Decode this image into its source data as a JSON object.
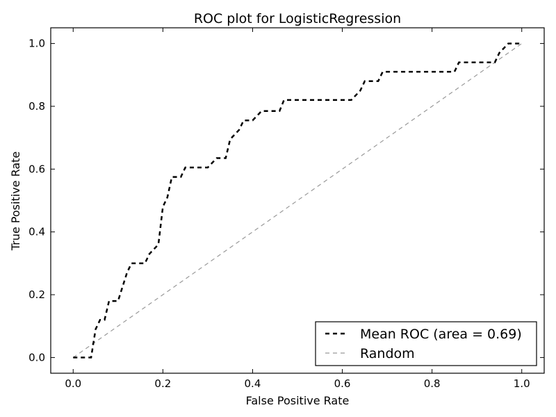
{
  "chart_data": {
    "type": "line",
    "title": "ROC plot for LogisticRegression",
    "xlabel": "False Positive Rate",
    "ylabel": "True Positive Rate",
    "xlim": [
      -0.05,
      1.05
    ],
    "ylim": [
      -0.05,
      1.05
    ],
    "xticks": [
      "0.0",
      "0.2",
      "0.4",
      "0.6",
      "0.8",
      "1.0"
    ],
    "yticks": [
      "0.0",
      "0.2",
      "0.4",
      "0.6",
      "0.8",
      "1.0"
    ],
    "grid": false,
    "legend": {
      "position": "lower-right",
      "entries": [
        "Mean ROC (area = 0.69)",
        "Random"
      ]
    },
    "series": [
      {
        "name": "Mean ROC (area = 0.69)",
        "color": "#000000",
        "style": "dashed",
        "x": [
          0.0,
          0.04,
          0.05,
          0.06,
          0.07,
          0.08,
          0.1,
          0.12,
          0.13,
          0.16,
          0.17,
          0.19,
          0.2,
          0.21,
          0.22,
          0.24,
          0.25,
          0.26,
          0.3,
          0.32,
          0.34,
          0.35,
          0.37,
          0.38,
          0.4,
          0.42,
          0.43,
          0.46,
          0.47,
          0.49,
          0.53,
          0.62,
          0.64,
          0.65,
          0.68,
          0.69,
          0.7,
          0.85,
          0.86,
          0.94,
          0.95,
          0.97,
          1.0
        ],
        "y": [
          0.0,
          0.0,
          0.09,
          0.12,
          0.12,
          0.18,
          0.18,
          0.27,
          0.3,
          0.3,
          0.33,
          0.36,
          0.48,
          0.51,
          0.575,
          0.575,
          0.605,
          0.605,
          0.605,
          0.635,
          0.635,
          0.695,
          0.725,
          0.755,
          0.755,
          0.785,
          0.785,
          0.785,
          0.82,
          0.82,
          0.82,
          0.82,
          0.85,
          0.88,
          0.88,
          0.91,
          0.91,
          0.91,
          0.94,
          0.94,
          0.97,
          1.0,
          1.0
        ]
      },
      {
        "name": "Random",
        "color": "#999999",
        "style": "dashed",
        "x": [
          0.0,
          1.0
        ],
        "y": [
          0.0,
          1.0
        ]
      }
    ]
  }
}
